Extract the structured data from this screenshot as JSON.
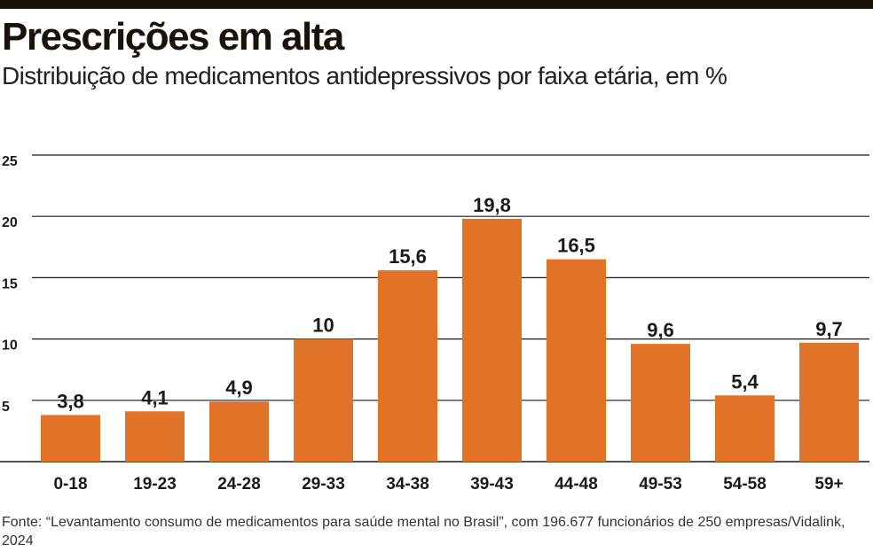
{
  "header": {
    "title": "Prescrições em alta",
    "subtitle": "Distribuição de medicamentos antidepressivos por faixa etária, em %"
  },
  "footer": {
    "source": "Fonte: “Levantamento consumo de medicamentos para saúde mental no Brasil”, com 196.677 funcionários de 250 empresas/Vidalink, 2024"
  },
  "colors": {
    "bar": "#E07328",
    "grid": "#1a1a1a",
    "text": "#1a1a1a"
  },
  "chart_data": {
    "type": "bar",
    "title": "Prescrições em alta",
    "subtitle": "Distribuição de medicamentos antidepressivos por faixa etária, em %",
    "xlabel": "",
    "ylabel": "",
    "categories": [
      "0-18",
      "19-23",
      "24-28",
      "29-33",
      "34-38",
      "39-43",
      "44-48",
      "49-53",
      "54-58",
      "59+"
    ],
    "values": [
      3.8,
      4.1,
      4.9,
      10,
      15.6,
      19.8,
      16.5,
      9.6,
      5.4,
      9.7
    ],
    "value_labels": [
      "3,8",
      "4,1",
      "4,9",
      "10",
      "15,6",
      "19,8",
      "16,5",
      "9,6",
      "5,4",
      "9,7"
    ],
    "ylim": [
      0,
      25
    ],
    "yticks": [
      5,
      10,
      15,
      20,
      25
    ],
    "grid": true,
    "legend": "none"
  }
}
